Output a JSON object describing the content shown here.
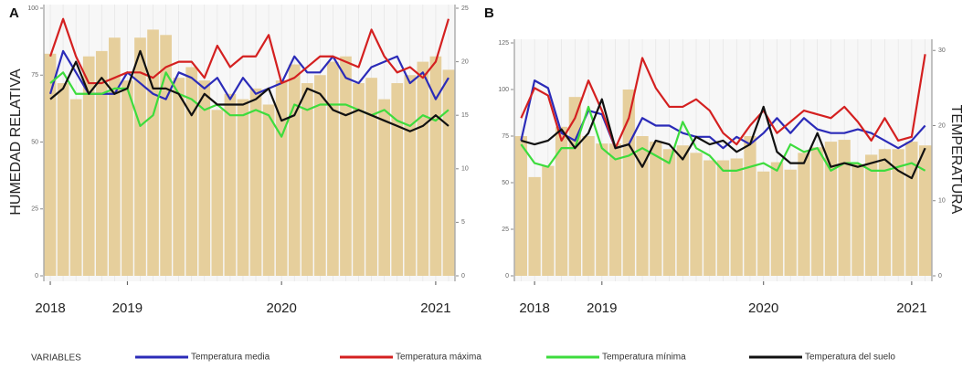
{
  "legend_title": "VARIABLES",
  "chart_data": [
    {
      "type": "bar_line",
      "panel": "A",
      "y_label": "HUMEDAD RELATIVA",
      "categories": [
        "2018",
        null,
        null,
        null,
        null,
        null,
        "2019",
        null,
        null,
        null,
        null,
        null,
        null,
        null,
        null,
        null,
        null,
        null,
        "2020",
        null,
        null,
        null,
        null,
        null,
        null,
        null,
        null,
        null,
        null,
        null,
        "2021",
        null
      ],
      "bars": {
        "color": "#e6cf9c",
        "values": [
          83,
          72,
          66,
          82,
          84,
          89,
          73,
          89,
          92,
          90,
          74,
          78,
          73,
          62,
          68,
          66,
          70,
          64,
          73,
          79,
          72,
          75,
          80,
          82,
          72,
          74,
          66,
          72,
          75,
          80,
          82,
          77
        ]
      },
      "series": [
        {
          "name": "Temperatura media",
          "color": "#2b2bb8",
          "axis": "y2",
          "values": [
            17,
            21,
            19,
            17,
            17,
            17,
            19,
            18,
            17,
            16.5,
            19,
            18.5,
            17.5,
            18.5,
            16.5,
            18.5,
            17,
            17.5,
            18,
            20.5,
            19,
            19,
            20.5,
            18.5,
            18,
            19.5,
            20,
            20.5,
            18,
            19,
            16.5,
            18.5
          ]
        },
        {
          "name": "Temperatura máxima",
          "color": "#d42020",
          "axis": "y2",
          "values": [
            20.5,
            24,
            20.5,
            18,
            18,
            18.5,
            19,
            19,
            18.5,
            19.5,
            20,
            20,
            18.5,
            21.5,
            19.5,
            20.5,
            20.5,
            22.5,
            18,
            18.5,
            19.5,
            20.5,
            20.5,
            20,
            19.5,
            23,
            20.5,
            19,
            19.5,
            18.5,
            20,
            24
          ]
        },
        {
          "name": "Temperatura mínima",
          "color": "#3ddc3d",
          "axis": "y2",
          "values": [
            18,
            19,
            17,
            17,
            17,
            17.5,
            17.5,
            14,
            15,
            19,
            17,
            16.5,
            15.5,
            16,
            15,
            15,
            15.5,
            15,
            13,
            16,
            15.5,
            16,
            16,
            16,
            15.5,
            15,
            15.5,
            14.5,
            14,
            15,
            14.5,
            15.5
          ]
        },
        {
          "name": "Temperatura del suelo",
          "color": "#111111",
          "axis": "y2",
          "values": [
            16.5,
            17.5,
            20,
            17,
            18.5,
            17,
            17.5,
            21,
            17.5,
            17.5,
            17,
            15,
            17,
            16,
            16,
            16,
            16.5,
            17.5,
            14.5,
            15,
            17.5,
            17,
            15.5,
            15,
            15.5,
            15,
            14.5,
            14,
            13.5,
            14,
            15,
            14
          ]
        }
      ],
      "ylim": [
        0,
        100
      ],
      "yticks": [
        0,
        25,
        50,
        75,
        100
      ],
      "y2lim": [
        0,
        25
      ],
      "y2ticks": [
        0,
        5,
        10,
        15,
        20,
        25
      ]
    },
    {
      "type": "bar_line",
      "panel": "B",
      "y2_label": "TEMPERATURA",
      "categories": [
        null,
        "2018",
        null,
        null,
        null,
        null,
        "2019",
        null,
        null,
        null,
        null,
        null,
        null,
        null,
        null,
        null,
        null,
        null,
        "2020",
        null,
        null,
        null,
        null,
        null,
        null,
        null,
        null,
        null,
        null,
        "2021",
        null
      ],
      "bars": {
        "color": "#e6cf9c",
        "values": [
          75,
          53,
          59,
          80,
          96,
          75,
          71,
          71,
          100,
          75,
          72,
          68,
          70,
          66,
          62,
          62,
          63,
          75,
          56,
          61,
          57,
          66,
          69,
          72,
          73,
          60,
          65,
          68,
          68,
          72,
          70
        ]
      },
      "series": [
        {
          "name": "Temperatura media",
          "color": "#2b2bb8",
          "axis": "y2",
          "values": [
            18,
            26,
            25,
            19,
            18,
            22,
            21.5,
            17,
            17.5,
            21,
            20,
            20,
            19,
            18.5,
            18.5,
            17,
            18.5,
            17.5,
            19,
            21,
            19,
            21,
            19.5,
            19,
            19,
            19.5,
            19,
            18,
            17,
            18,
            20
          ]
        },
        {
          "name": "Temperatura máxima",
          "color": "#d42020",
          "axis": "y2",
          "values": [
            21,
            25,
            24,
            18,
            21,
            26,
            22,
            17,
            21,
            29,
            25,
            22.5,
            22.5,
            23.5,
            22,
            19,
            17.5,
            20,
            22,
            19,
            20.5,
            22,
            21.5,
            21,
            22.5,
            20.5,
            18,
            21,
            18,
            18.5,
            29.5
          ]
        },
        {
          "name": "Temperatura mínima",
          "color": "#3ddc3d",
          "axis": "y2",
          "values": [
            17.5,
            15,
            14.5,
            17,
            17,
            22.5,
            17,
            15.5,
            16,
            17,
            16,
            15,
            20.5,
            17,
            16,
            14,
            14,
            14.5,
            15,
            14,
            17.5,
            16.5,
            17,
            14,
            15,
            15,
            14,
            14,
            14.5,
            15,
            14
          ]
        },
        {
          "name": "Temperatura del suelo",
          "color": "#111111",
          "axis": "y2",
          "values": [
            18,
            17.5,
            18,
            19.5,
            17,
            19,
            23.5,
            17,
            17.5,
            14.5,
            18,
            17.5,
            15.5,
            18.5,
            17.5,
            18,
            16.5,
            17.5,
            22.5,
            16.5,
            15,
            15,
            19,
            14.5,
            15,
            14.5,
            15,
            15.5,
            14,
            13,
            17
          ]
        }
      ],
      "ylim": [
        0,
        125
      ],
      "yticks": [
        0,
        25,
        50,
        75,
        100,
        125
      ],
      "y2lim": [
        0,
        31
      ],
      "y2ticks": [
        0,
        10,
        20,
        30
      ]
    }
  ]
}
